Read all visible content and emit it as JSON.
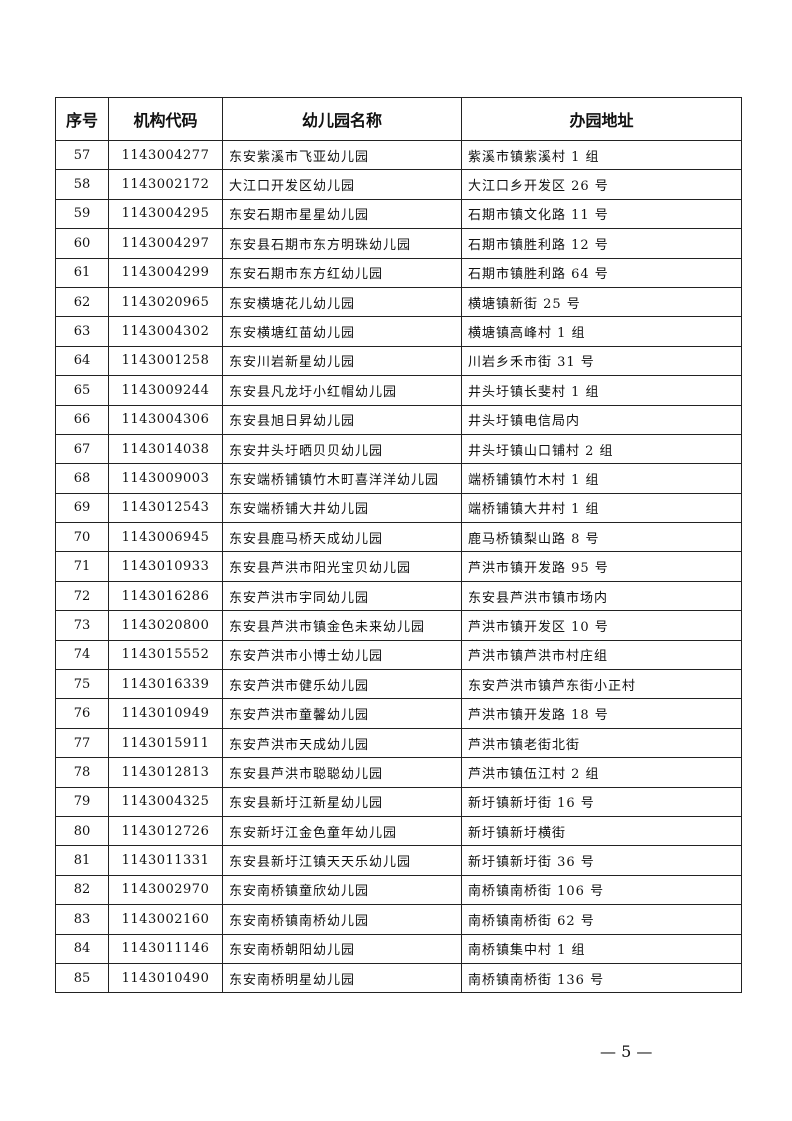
{
  "table": {
    "headers": [
      "序号",
      "机构代码",
      "幼儿园名称",
      "办园地址"
    ],
    "rows": [
      [
        "57",
        "1143004277",
        "东安紫溪市飞亚幼儿园",
        "紫溪市镇紫溪村 1 组"
      ],
      [
        "58",
        "1143002172",
        "大江口开发区幼儿园",
        "大江口乡开发区 26 号"
      ],
      [
        "59",
        "1143004295",
        "东安石期市星星幼儿园",
        "石期市镇文化路 11 号"
      ],
      [
        "60",
        "1143004297",
        "东安县石期市东方明珠幼儿园",
        "石期市镇胜利路 12 号"
      ],
      [
        "61",
        "1143004299",
        "东安石期市东方红幼儿园",
        "石期市镇胜利路 64 号"
      ],
      [
        "62",
        "1143020965",
        "东安横塘花儿幼儿园",
        "横塘镇新街 25 号"
      ],
      [
        "63",
        "1143004302",
        "东安横塘红苗幼儿园",
        "横塘镇高峰村 1 组"
      ],
      [
        "64",
        "1143001258",
        "东安川岩新星幼儿园",
        "川岩乡禾市街 31 号"
      ],
      [
        "65",
        "1143009244",
        "东安县凡龙圩小红帽幼儿园",
        "井头圩镇长斐村 1 组"
      ],
      [
        "66",
        "1143004306",
        "东安县旭日昇幼儿园",
        "井头圩镇电信局内"
      ],
      [
        "67",
        "1143014038",
        "东安井头圩晒贝贝幼儿园",
        "井头圩镇山口铺村 2 组"
      ],
      [
        "68",
        "1143009003",
        "东安端桥铺镇竹木町喜洋洋幼儿园",
        "端桥铺镇竹木村 1 组"
      ],
      [
        "69",
        "1143012543",
        "东安端桥铺大井幼儿园",
        "端桥铺镇大井村 1 组"
      ],
      [
        "70",
        "1143006945",
        "东安县鹿马桥天成幼儿园",
        "鹿马桥镇梨山路 8 号"
      ],
      [
        "71",
        "1143010933",
        "东安县芦洪市阳光宝贝幼儿园",
        "芦洪市镇开发路 95 号"
      ],
      [
        "72",
        "1143016286",
        "东安芦洪市宇同幼儿园",
        "东安县芦洪市镇市场内"
      ],
      [
        "73",
        "1143020800",
        "东安县芦洪市镇金色未来幼儿园",
        "芦洪市镇开发区 10 号"
      ],
      [
        "74",
        "1143015552",
        "东安芦洪市小博士幼儿园",
        "芦洪市镇芦洪市村庄组"
      ],
      [
        "75",
        "1143016339",
        "东安芦洪市健乐幼儿园",
        "东安芦洪市镇芦东街小正村"
      ],
      [
        "76",
        "1143010949",
        "东安芦洪市童馨幼儿园",
        "芦洪市镇开发路 18 号"
      ],
      [
        "77",
        "1143015911",
        "东安芦洪市天成幼儿园",
        "芦洪市镇老街北街"
      ],
      [
        "78",
        "1143012813",
        "东安县芦洪市聪聪幼儿园",
        "芦洪市镇伍江村 2 组"
      ],
      [
        "79",
        "1143004325",
        "东安县新圩江新星幼儿园",
        "新圩镇新圩街 16 号"
      ],
      [
        "80",
        "1143012726",
        "东安新圩江金色童年幼儿园",
        "新圩镇新圩横街"
      ],
      [
        "81",
        "1143011331",
        "东安县新圩江镇天天乐幼儿园",
        "新圩镇新圩街 36 号"
      ],
      [
        "82",
        "1143002970",
        "东安南桥镇童欣幼儿园",
        "南桥镇南桥街 106 号"
      ],
      [
        "83",
        "1143002160",
        "东安南桥镇南桥幼儿园",
        "南桥镇南桥街 62 号"
      ],
      [
        "84",
        "1143011146",
        "东安南桥朝阳幼儿园",
        "南桥镇集中村 1 组"
      ],
      [
        "85",
        "1143010490",
        "东安南桥明星幼儿园",
        "南桥镇南桥街 136 号"
      ]
    ]
  },
  "footer": {
    "page_number": "— 5 —"
  }
}
